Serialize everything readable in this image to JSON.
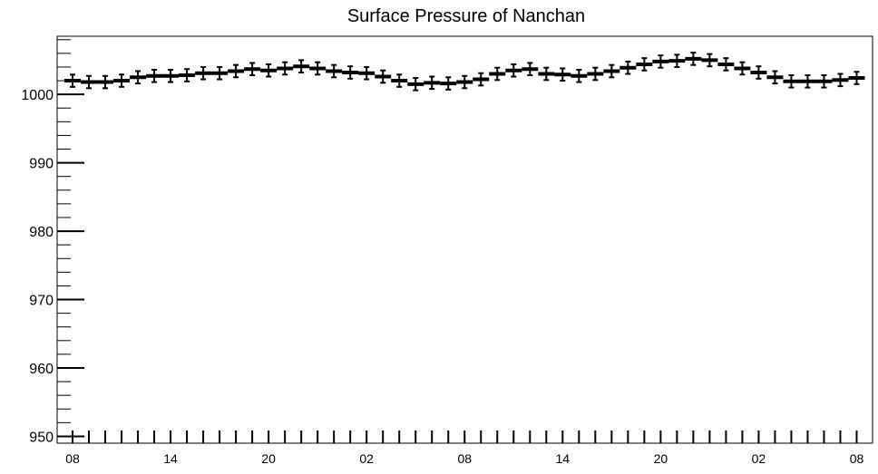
{
  "chart_data": {
    "type": "line",
    "title": "Surface Pressure of Nanchan",
    "xlabel": "",
    "ylabel": "",
    "ylim": [
      949,
      1008.5
    ],
    "yticks": [
      950,
      960,
      970,
      980,
      990,
      1000
    ],
    "xtick_labels": [
      "08",
      "14",
      "20",
      "02",
      "08",
      "14",
      "20",
      "02",
      "08"
    ],
    "grid": false,
    "legend": "none",
    "marker": "bar-with-error",
    "error": 0.9,
    "colors": {
      "series": "#000000",
      "axis": "#000000",
      "background": "#ffffff"
    },
    "series": [
      {
        "x": [
          0,
          1,
          2,
          3,
          4,
          5,
          6,
          7,
          8,
          9,
          10,
          11,
          12,
          13,
          14,
          15,
          16,
          17,
          18,
          19,
          20,
          21,
          22,
          23,
          24,
          25,
          26,
          27,
          28,
          29,
          30,
          31,
          32,
          33,
          34,
          35,
          36,
          37,
          38,
          39,
          40,
          41,
          42,
          43,
          44,
          45,
          46,
          47,
          48
        ],
        "values": [
          1002.0,
          1001.8,
          1001.8,
          1002.0,
          1002.5,
          1002.7,
          1002.7,
          1002.8,
          1003.1,
          1003.1,
          1003.4,
          1003.7,
          1003.5,
          1003.8,
          1004.1,
          1003.8,
          1003.4,
          1003.2,
          1003.1,
          1002.6,
          1002.0,
          1001.5,
          1001.7,
          1001.6,
          1001.8,
          1002.2,
          1003.0,
          1003.5,
          1003.7,
          1003.0,
          1002.9,
          1002.7,
          1003.0,
          1003.4,
          1003.9,
          1004.4,
          1004.8,
          1004.9,
          1005.2,
          1005.0,
          1004.4,
          1003.8,
          1003.2,
          1002.5,
          1001.9,
          1001.9,
          1001.9,
          1002.1,
          1002.4
        ]
      }
    ]
  }
}
